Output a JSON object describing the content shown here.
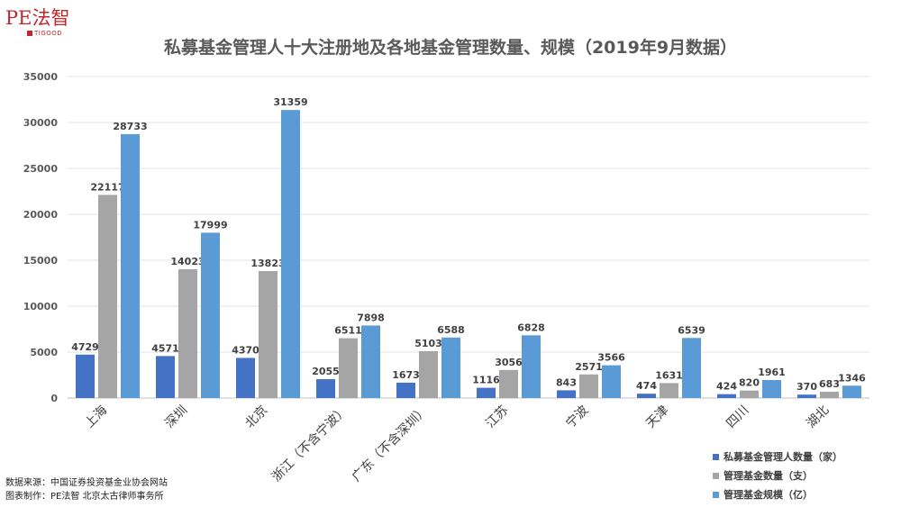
{
  "logo": {
    "main": "PE法智",
    "sub": "TIGOOD"
  },
  "footer": {
    "source": "数据来源：中国证券投资基金业协会网站",
    "maker": "图表制作：PE法智 北京太古律师事务所"
  },
  "chart_data": {
    "type": "bar",
    "title": "私募基金管理人十大注册地及各地基金管理数量、规模（2019年9月数据）",
    "categories": [
      "上海",
      "深圳",
      "北京",
      "浙江（不含宁波）",
      "广东（不含深圳）",
      "江苏",
      "宁波",
      "天津",
      "四川",
      "湖北"
    ],
    "series": [
      {
        "name": "私募基金管理人数量（家）",
        "color": "#4472c4",
        "values": [
          4729,
          4571,
          4370,
          2055,
          1673,
          1116,
          843,
          474,
          424,
          370
        ]
      },
      {
        "name": "管理基金数量（支）",
        "color": "#a5a5a5",
        "values": [
          22117,
          14023,
          13823,
          6511,
          5103,
          3056,
          2571,
          1631,
          820,
          683
        ]
      },
      {
        "name": "管理基金规模（亿）",
        "color": "#5b9bd5",
        "values": [
          28733,
          17999,
          31359,
          7898,
          6588,
          6828,
          3566,
          6539,
          1961,
          1346
        ]
      }
    ],
    "ylim": [
      0,
      35000
    ],
    "yticks": [
      "0",
      "5000",
      "10000",
      "15000",
      "20000",
      "25000",
      "30000",
      "35000"
    ],
    "grid": true,
    "legend_position": "bottom-right"
  }
}
